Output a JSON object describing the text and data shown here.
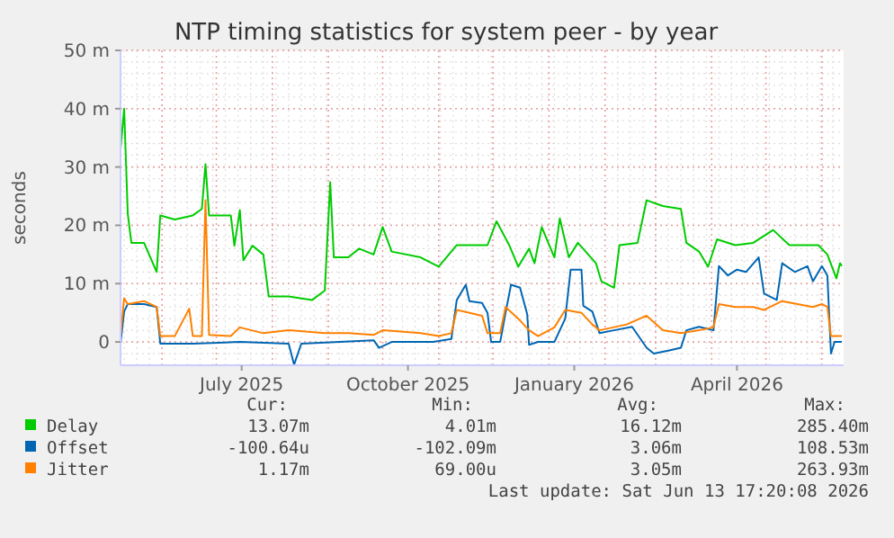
{
  "chart_data": {
    "type": "line",
    "title": "NTP timing statistics for system peer - by year",
    "ylabel": "seconds",
    "xlim": [
      "2025-05-09",
      "2026-06-13"
    ],
    "xticks": [
      {
        "value": "2025-07-15",
        "label": "July 2025"
      },
      {
        "value": "2025-10-15",
        "label": "October 2025"
      },
      {
        "value": "2026-01-15",
        "label": "January 2026"
      },
      {
        "value": "2026-04-15",
        "label": "April 2026"
      }
    ],
    "ylim": [
      -4,
      50
    ],
    "yticks": [
      0,
      {
        "value": 10,
        "label": "10 m"
      },
      {
        "value": 20,
        "label": "20 m"
      },
      {
        "value": 30,
        "label": "30 m"
      },
      {
        "value": 40,
        "label": "40 m"
      },
      {
        "value": 50,
        "label": "50 m"
      }
    ],
    "grid": true,
    "legend": "bottom",
    "series": [
      {
        "name": "Delay",
        "color": "#00cc00",
        "x": [
          "2025-05-09",
          "2025-05-11",
          "2025-05-13",
          "2025-05-15",
          "2025-05-22",
          "2025-05-29",
          "2025-05-31",
          "2025-06-08",
          "2025-06-18",
          "2025-06-23",
          "2025-06-25",
          "2025-06-27",
          "2025-07-09",
          "2025-07-11",
          "2025-07-14",
          "2025-07-16",
          "2025-07-21",
          "2025-07-27",
          "2025-07-30",
          "2025-08-10",
          "2025-08-23",
          "2025-08-30",
          "2025-09-02",
          "2025-09-04",
          "2025-09-12",
          "2025-09-18",
          "2025-09-26",
          "2025-10-01",
          "2025-10-06",
          "2025-10-22",
          "2025-11-01",
          "2025-11-11",
          "2025-11-28",
          "2025-12-03",
          "2025-12-10",
          "2025-12-15",
          "2025-12-21",
          "2025-12-24",
          "2025-12-28",
          "2026-01-04",
          "2026-01-07",
          "2026-01-12",
          "2026-01-17",
          "2026-01-27",
          "2026-01-30",
          "2026-02-06",
          "2026-02-09",
          "2026-02-19",
          "2026-02-24",
          "2026-03-05",
          "2026-03-15",
          "2026-03-18",
          "2026-03-25",
          "2026-03-30",
          "2026-04-04",
          "2026-04-14",
          "2026-04-24",
          "2026-05-05",
          "2026-05-14",
          "2026-05-30",
          "2026-06-04",
          "2026-06-09",
          "2026-06-11",
          "2026-06-12"
        ],
        "values": [
          33,
          40,
          22,
          17,
          17,
          12,
          21.7,
          21,
          21.7,
          22.8,
          30.5,
          21.7,
          21.7,
          16.5,
          22.6,
          14,
          16.5,
          15,
          7.8,
          7.8,
          7.2,
          8.8,
          27.4,
          14.5,
          14.5,
          16,
          15,
          19.7,
          15.5,
          14.5,
          12.9,
          16.6,
          16.6,
          20.7,
          16.6,
          12.9,
          16,
          13.5,
          19.7,
          14.5,
          21.2,
          14.5,
          17,
          13.5,
          10.4,
          9.3,
          16.6,
          17,
          24.3,
          23.3,
          22.8,
          17,
          15.5,
          12.9,
          17.6,
          16.6,
          17,
          19.2,
          16.6,
          16.6,
          15,
          10.9,
          13.5,
          13
        ]
      },
      {
        "name": "Offset",
        "color": "#0066b3",
        "x": [
          "2025-05-09",
          "2025-05-11",
          "2025-05-13",
          "2025-05-22",
          "2025-05-29",
          "2025-05-31",
          "2025-06-18",
          "2025-07-14",
          "2025-08-10",
          "2025-08-13",
          "2025-08-17",
          "2025-09-26",
          "2025-09-29",
          "2025-10-06",
          "2025-10-29",
          "2025-11-08",
          "2025-11-11",
          "2025-11-16",
          "2025-11-18",
          "2025-11-25",
          "2025-11-28",
          "2025-11-30",
          "2025-12-05",
          "2025-12-08",
          "2025-12-11",
          "2025-12-16",
          "2025-12-20",
          "2025-12-21",
          "2025-12-26",
          "2026-01-04",
          "2026-01-10",
          "2026-01-13",
          "2026-01-19",
          "2026-01-20",
          "2026-01-25",
          "2026-01-29",
          "2026-02-06",
          "2026-02-16",
          "2026-02-24",
          "2026-02-28",
          "2026-03-08",
          "2026-03-15",
          "2026-03-18",
          "2026-03-25",
          "2026-04-02",
          "2026-04-05",
          "2026-04-10",
          "2026-04-15",
          "2026-04-20",
          "2026-04-27",
          "2026-04-30",
          "2026-05-07",
          "2026-05-10",
          "2026-05-17",
          "2026-05-24",
          "2026-05-27",
          "2026-06-01",
          "2026-06-04",
          "2026-06-06",
          "2026-06-08",
          "2026-06-12"
        ],
        "values": [
          -0.2,
          5.2,
          6.5,
          6.5,
          6,
          -0.3,
          -0.3,
          0,
          -0.3,
          -3.9,
          -0.3,
          0.3,
          -1,
          0,
          0,
          0.5,
          7.2,
          9.8,
          7,
          6.7,
          5,
          0,
          0,
          5,
          9.8,
          9.3,
          4.7,
          -0.5,
          0,
          0,
          4,
          12.4,
          12.4,
          6.2,
          5.2,
          1.5,
          2,
          2.6,
          -1,
          -2,
          -1.5,
          -1,
          2,
          2.6,
          2,
          13,
          11.4,
          12.4,
          12,
          14.5,
          8.3,
          7.2,
          13.5,
          12,
          13,
          10.4,
          13,
          11.4,
          -2,
          0,
          0
        ]
      },
      {
        "name": "Jitter",
        "color": "#ff8000",
        "x": [
          "2025-05-09",
          "2025-05-11",
          "2025-05-13",
          "2025-05-22",
          "2025-05-29",
          "2025-05-31",
          "2025-06-08",
          "2025-06-16",
          "2025-06-18",
          "2025-06-23",
          "2025-06-25",
          "2025-06-27",
          "2025-07-09",
          "2025-07-14",
          "2025-07-27",
          "2025-08-10",
          "2025-08-30",
          "2025-09-12",
          "2025-09-26",
          "2025-10-01",
          "2025-10-22",
          "2025-11-01",
          "2025-11-08",
          "2025-11-11",
          "2025-11-25",
          "2025-11-28",
          "2025-12-05",
          "2025-12-08",
          "2025-12-15",
          "2025-12-21",
          "2025-12-26",
          "2026-01-04",
          "2026-01-10",
          "2026-01-19",
          "2026-01-25",
          "2026-01-29",
          "2026-02-13",
          "2026-02-24",
          "2026-03-05",
          "2026-03-15",
          "2026-03-25",
          "2026-04-02",
          "2026-04-05",
          "2026-04-14",
          "2026-04-24",
          "2026-04-30",
          "2026-05-10",
          "2026-05-27",
          "2026-06-01",
          "2026-06-04",
          "2026-06-06",
          "2026-06-12"
        ],
        "values": [
          1,
          7.5,
          6.5,
          7,
          6,
          1,
          1,
          5.7,
          1,
          1,
          24.3,
          1.2,
          1,
          2.5,
          1.5,
          2,
          1.5,
          1.5,
          1.2,
          2,
          1.5,
          1,
          1.5,
          5.5,
          4.5,
          1.5,
          1.5,
          6,
          4,
          2,
          1,
          2.5,
          5.5,
          5,
          3,
          2,
          3,
          4.5,
          2,
          1.5,
          2,
          2.5,
          6.5,
          6,
          6,
          5.5,
          7,
          6,
          6.5,
          6,
          1,
          1
        ]
      }
    ],
    "annotations": [
      "Cur:",
      "Min:",
      "Avg:",
      "Max:",
      "13.07m",
      "4.01m",
      "16.12m",
      "285.40m",
      "-100.64u",
      "-102.09m",
      "3.06m",
      "108.53m",
      "1.17m",
      "69.00u",
      "3.05m",
      "263.93m",
      "Last update: Sat Jun 13 17:20:08 2026"
    ]
  }
}
